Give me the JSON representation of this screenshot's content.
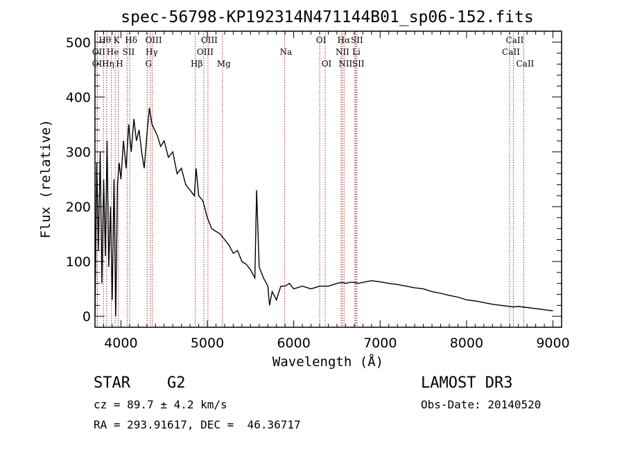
{
  "chart_data": {
    "type": "line",
    "title": "spec-56798-KP192314N471144B01_sp06-152.fits",
    "xlabel": "Wavelength (Å)",
    "ylabel": "Flux (relative)",
    "xlim": [
      3700,
      9100
    ],
    "ylim": [
      -20,
      520
    ],
    "xticks": [
      4000,
      5000,
      6000,
      7000,
      8000,
      9000
    ],
    "yticks": [
      0,
      100,
      200,
      300,
      400,
      500
    ],
    "series": [
      {
        "name": "flux",
        "x": [
          3700,
          3720,
          3740,
          3760,
          3780,
          3800,
          3820,
          3840,
          3860,
          3880,
          3900,
          3920,
          3940,
          3960,
          3980,
          4000,
          4030,
          4060,
          4090,
          4120,
          4150,
          4180,
          4210,
          4240,
          4270,
          4300,
          4330,
          4360,
          4390,
          4420,
          4460,
          4500,
          4550,
          4600,
          4650,
          4700,
          4750,
          4800,
          4850,
          4870,
          4900,
          4950,
          5000,
          5050,
          5100,
          5150,
          5200,
          5250,
          5300,
          5350,
          5400,
          5450,
          5500,
          5550,
          5570,
          5600,
          5650,
          5700,
          5720,
          5750,
          5800,
          5850,
          5900,
          5950,
          6000,
          6100,
          6200,
          6300,
          6400,
          6500,
          6560,
          6600,
          6650,
          6700,
          6750,
          6800,
          6900,
          7000,
          7100,
          7200,
          7300,
          7400,
          7500,
          7600,
          7700,
          7800,
          7900,
          8000,
          8100,
          8200,
          8300,
          8400,
          8500,
          8540,
          8600,
          8700,
          8800,
          8900,
          9000
        ],
        "y": [
          0,
          280,
          120,
          300,
          60,
          250,
          110,
          320,
          90,
          200,
          30,
          250,
          0,
          240,
          280,
          250,
          320,
          270,
          350,
          300,
          360,
          320,
          340,
          300,
          270,
          330,
          380,
          350,
          340,
          330,
          310,
          320,
          290,
          300,
          260,
          270,
          240,
          230,
          220,
          270,
          220,
          210,
          180,
          160,
          155,
          150,
          140,
          130,
          115,
          120,
          100,
          95,
          85,
          70,
          230,
          90,
          70,
          55,
          20,
          45,
          30,
          55,
          55,
          60,
          50,
          55,
          50,
          55,
          55,
          60,
          62,
          60,
          62,
          62,
          60,
          62,
          65,
          63,
          60,
          58,
          55,
          52,
          50,
          45,
          42,
          38,
          35,
          30,
          28,
          25,
          22,
          20,
          18,
          17,
          18,
          16,
          14,
          12,
          10
        ]
      }
    ],
    "spectral_lines": [
      {
        "label": "Hθ",
        "wavelength": 3798,
        "row": 0
      },
      {
        "label": "OII",
        "wavelength": 3727,
        "row": 1
      },
      {
        "label": "OII",
        "wavelength": 3727,
        "row": 2
      },
      {
        "label": "Hη",
        "wavelength": 3835,
        "row": 2
      },
      {
        "label": "He",
        "wavelength": 3889,
        "row": 1
      },
      {
        "label": "K",
        "wavelength": 3934,
        "row": 0
      },
      {
        "label": "SII",
        "wavelength": 4072,
        "row": 1
      },
      {
        "label": "H",
        "wavelength": 3969,
        "row": 2
      },
      {
        "label": "Hδ",
        "wavelength": 4102,
        "row": 0
      },
      {
        "label": "OIII",
        "wavelength": 4363,
        "row": 0
      },
      {
        "label": "Hγ",
        "wavelength": 4340,
        "row": 1
      },
      {
        "label": "G",
        "wavelength": 4304,
        "row": 2
      },
      {
        "label": "Hβ",
        "wavelength": 4861,
        "row": 2
      },
      {
        "label": "OIII",
        "wavelength": 5007,
        "row": 0
      },
      {
        "label": "OIII",
        "wavelength": 4959,
        "row": 1
      },
      {
        "label": "Mg",
        "wavelength": 5175,
        "row": 2
      },
      {
        "label": "Na",
        "wavelength": 5894,
        "row": 1
      },
      {
        "label": "OI",
        "wavelength": 6300,
        "row": 0
      },
      {
        "label": "OI",
        "wavelength": 6364,
        "row": 2
      },
      {
        "label": "Hα",
        "wavelength": 6563,
        "row": 0
      },
      {
        "label": "NII",
        "wavelength": 6548,
        "row": 1
      },
      {
        "label": "NII",
        "wavelength": 6583,
        "row": 2
      },
      {
        "label": "SII",
        "wavelength": 6716,
        "row": 0
      },
      {
        "label": "Li",
        "wavelength": 6708,
        "row": 1
      },
      {
        "label": "SII",
        "wavelength": 6731,
        "row": 2
      },
      {
        "label": "CaII",
        "wavelength": 8542,
        "row": 0
      },
      {
        "label": "CaII",
        "wavelength": 8498,
        "row": 1
      },
      {
        "label": "CaII",
        "wavelength": 8662,
        "row": 2
      }
    ],
    "line_color": "#b22222"
  },
  "info": {
    "object_class": "STAR",
    "subclass": "G2",
    "redshift_text": "cz = 89.7 ± 4.2 km/s",
    "coords_text": "RA = 293.91617, DEC =  46.36717",
    "survey": "LAMOST DR3",
    "obs_date_text": "Obs-Date: 20140520"
  }
}
